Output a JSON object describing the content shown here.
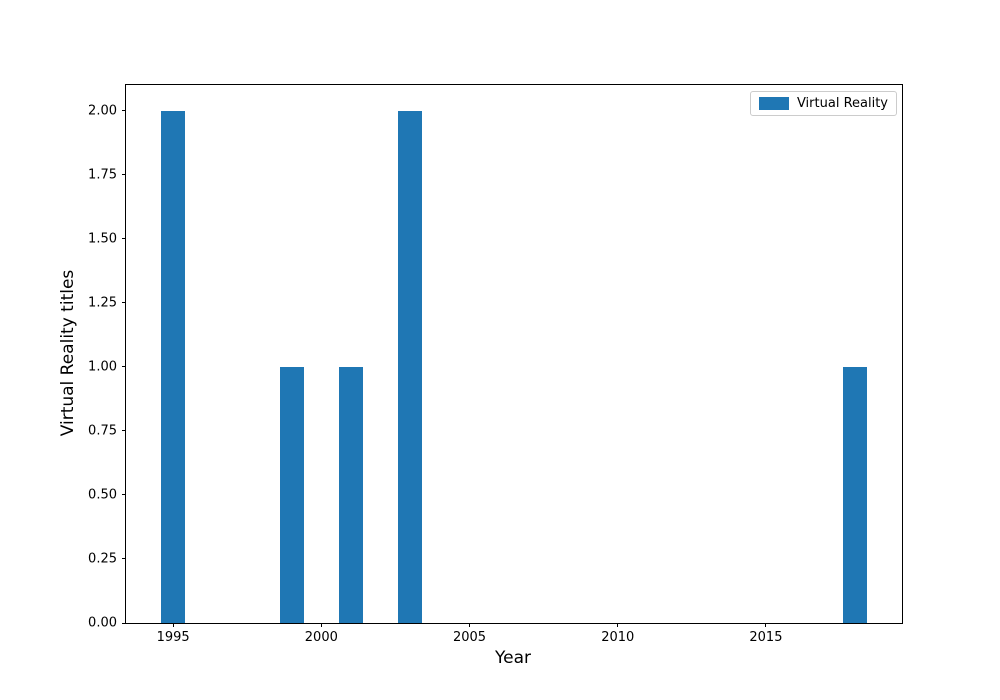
{
  "figure": {
    "background_color": "#ffffff",
    "spine_color": "#000000",
    "legend_border_color": "#cccccc"
  },
  "chart_data": {
    "type": "bar",
    "title": "",
    "xlabel": "Year",
    "ylabel": "Virtual Reality titles",
    "categories": [
      1995,
      1999,
      2001,
      2003,
      2018
    ],
    "values": [
      2,
      1,
      1,
      2,
      1
    ],
    "series": [
      {
        "name": "Virtual Reality",
        "color": "#1f77b4",
        "values": [
          2,
          1,
          1,
          2,
          1
        ]
      }
    ],
    "bar_width_years": 0.8,
    "xlim": [
      1993.41,
      2019.59
    ],
    "ylim": [
      0,
      2.1
    ],
    "xticks": [
      1995,
      2000,
      2005,
      2010,
      2015
    ],
    "yticks": [
      {
        "value": 0.0,
        "label": "0.00"
      },
      {
        "value": 0.25,
        "label": "0.25"
      },
      {
        "value": 0.5,
        "label": "0.50"
      },
      {
        "value": 0.75,
        "label": "0.75"
      },
      {
        "value": 1.0,
        "label": "1.00"
      },
      {
        "value": 1.25,
        "label": "1.25"
      },
      {
        "value": 1.5,
        "label": "1.50"
      },
      {
        "value": 1.75,
        "label": "1.75"
      },
      {
        "value": 2.0,
        "label": "2.00"
      }
    ],
    "grid": false,
    "legend": {
      "position": "upper right",
      "entries": [
        {
          "label": "Virtual Reality",
          "color": "#1f77b4"
        }
      ]
    }
  }
}
